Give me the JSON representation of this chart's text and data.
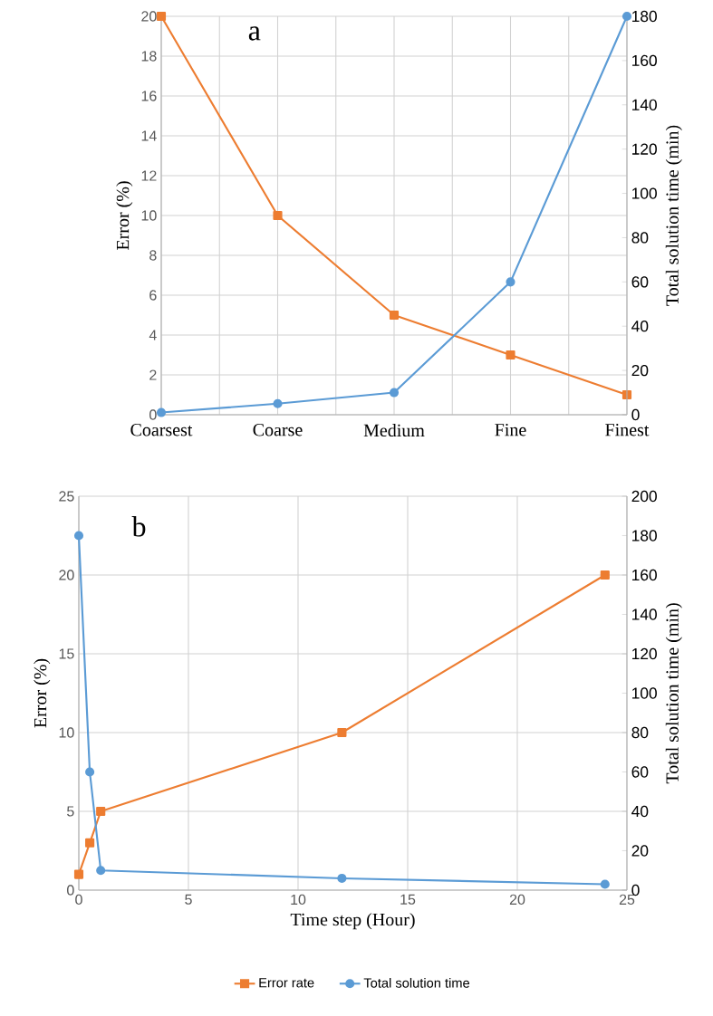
{
  "chart_data": [
    {
      "type": "line",
      "categories": [
        "Coarsest",
        "Coarse",
        "Medium",
        "Fine",
        "Finest"
      ],
      "ylabel": "Error (%)",
      "y2label": "Total solution time (min)",
      "ylim": [
        0,
        20
      ],
      "yticks": [
        0,
        2,
        4,
        6,
        8,
        10,
        12,
        14,
        16,
        18,
        20
      ],
      "y2lim": [
        0,
        180
      ],
      "y2ticks": [
        0,
        20,
        40,
        60,
        80,
        100,
        120,
        140,
        160,
        180
      ],
      "grid": true,
      "annotations": [
        "a"
      ],
      "series": [
        {
          "color": "#ed7d31",
          "marker": "square",
          "values": [
            20,
            10,
            5,
            3,
            1
          ]
        },
        {
          "color": "#5b9bd5",
          "marker": "circle",
          "axis": "y2",
          "values": [
            1,
            5,
            10,
            60,
            180
          ]
        }
      ]
    },
    {
      "type": "line",
      "xlabel": "Time step (Hour)",
      "ylabel": "Error (%)",
      "y2label": "Total solution time (min)",
      "xlim": [
        0,
        25
      ],
      "xticks": [
        0,
        5,
        10,
        15,
        20,
        25
      ],
      "ylim": [
        0,
        25
      ],
      "yticks": [
        0,
        5,
        10,
        15,
        20,
        25
      ],
      "y2lim": [
        0,
        200
      ],
      "y2ticks": [
        0,
        20,
        40,
        60,
        80,
        100,
        120,
        140,
        160,
        180,
        200
      ],
      "grid": true,
      "legend": "bottom",
      "annotations": [
        "b"
      ],
      "series": [
        {
          "name": "Error rate",
          "color": "#ed7d31",
          "marker": "square",
          "x": [
            0,
            0.5,
            1,
            12,
            24
          ],
          "values": [
            1,
            3,
            5,
            10,
            20
          ]
        },
        {
          "name": "Total solution time",
          "color": "#5b9bd5",
          "marker": "circle",
          "axis": "y2",
          "x": [
            0,
            0.5,
            1,
            12,
            24
          ],
          "values": [
            180,
            60,
            10,
            6,
            3
          ]
        }
      ]
    }
  ]
}
